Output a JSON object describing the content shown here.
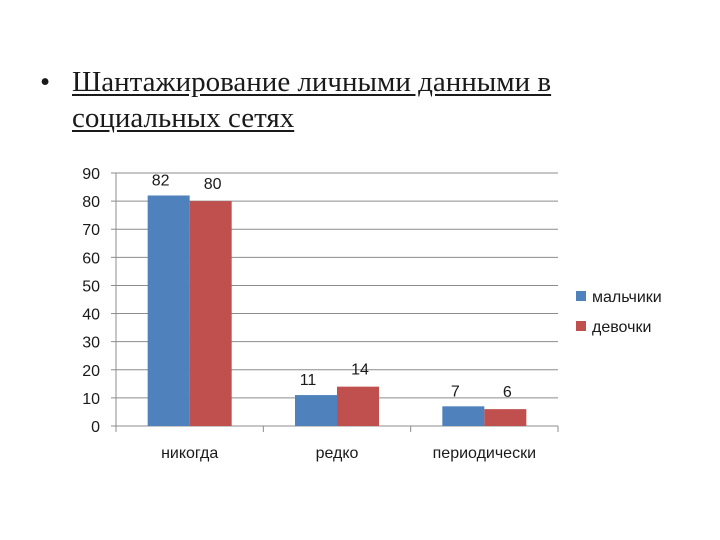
{
  "slide": {
    "bullet": "•",
    "title": "Шантажирование личными данными в социальных сетях"
  },
  "chart_data": {
    "type": "bar",
    "categories": [
      "никогда",
      "редко",
      "периодически"
    ],
    "series": [
      {
        "name": "мальчики",
        "values": [
          82,
          11,
          7
        ],
        "color": "#4F81BD"
      },
      {
        "name": "девочки",
        "values": [
          80,
          14,
          6
        ],
        "color": "#C0504D"
      }
    ],
    "data_labels": [
      [
        "82",
        "11",
        "7"
      ],
      [
        "80",
        "14",
        "6"
      ]
    ],
    "y_ticks": [
      "0",
      "10",
      "20",
      "30",
      "40",
      "50",
      "60",
      "70",
      "80",
      "90"
    ],
    "ylim": [
      0,
      90
    ],
    "grid": true,
    "legend_position": "right",
    "title": "",
    "xlabel": "",
    "ylabel": ""
  }
}
